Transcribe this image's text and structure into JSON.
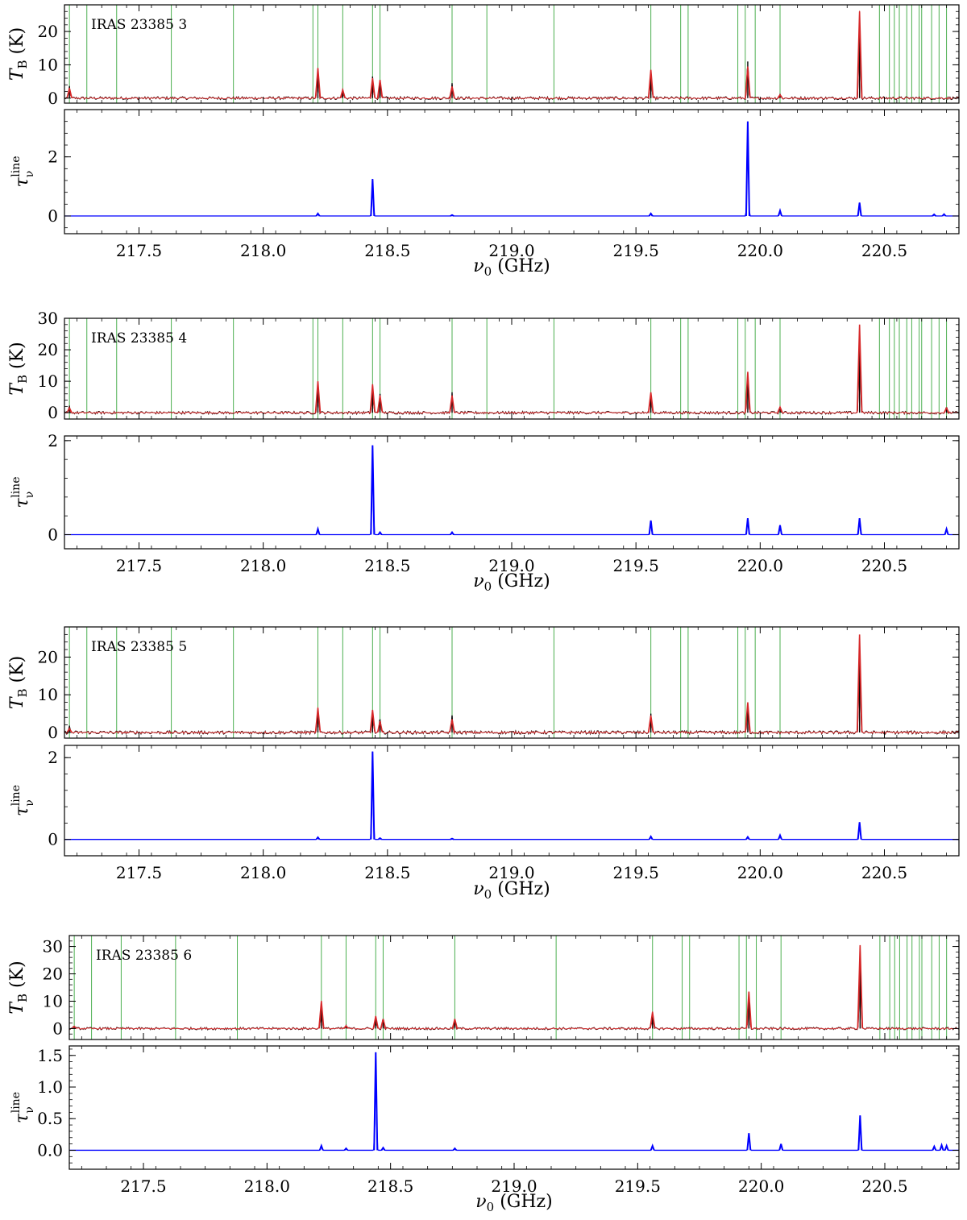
{
  "figure": {
    "labels": {
      "tb_ylabel": "T",
      "tb_ylabel_sub": "B",
      "tb_ylabel_unit": " (K)",
      "tau_ylabel": "τ",
      "tau_ylabel_sub": "ν",
      "tau_ylabel_sup": "line",
      "xlabel": "ν",
      "xlabel_sub": "0",
      "xlabel_unit": " (GHz)"
    }
  },
  "chart_data": [
    {
      "type": "line",
      "source": "IRAS 23385 3",
      "xlim": [
        217.2,
        220.8
      ],
      "x_ticks": [
        217.5,
        218.0,
        218.5,
        219.0,
        219.5,
        220.0,
        220.5
      ],
      "tb": {
        "ylim": [
          -1.5,
          28
        ],
        "y_ticks": [
          0,
          10,
          20
        ],
        "peaks_observed": [
          [
            217.22,
            3.5
          ],
          [
            218.22,
            8.5
          ],
          [
            218.32,
            2.5
          ],
          [
            218.44,
            6.5
          ],
          [
            218.47,
            5.0
          ],
          [
            218.76,
            4.5
          ],
          [
            219.56,
            8.0
          ],
          [
            219.95,
            11.0
          ],
          [
            220.08,
            1.2
          ],
          [
            220.4,
            25.0
          ]
        ],
        "peaks_model": [
          [
            217.22,
            3.0
          ],
          [
            218.22,
            9.0
          ],
          [
            218.32,
            2.5
          ],
          [
            218.44,
            6.0
          ],
          [
            218.47,
            5.5
          ],
          [
            218.76,
            3.5
          ],
          [
            219.56,
            8.5
          ],
          [
            219.95,
            9.5
          ],
          [
            220.08,
            1.0
          ],
          [
            220.4,
            26.0
          ]
        ],
        "line_markers": [
          217.22,
          217.29,
          217.41,
          217.63,
          217.88,
          218.2,
          218.22,
          218.32,
          218.44,
          218.47,
          218.76,
          218.9,
          219.17,
          219.56,
          219.68,
          219.71,
          219.91,
          219.94,
          219.98,
          220.08,
          220.48,
          220.52,
          220.54,
          220.56,
          220.59,
          220.61,
          220.64,
          220.65,
          220.69,
          220.72,
          220.75
        ]
      },
      "tau": {
        "ylim": [
          -0.6,
          3.6
        ],
        "y_ticks": [
          0,
          2
        ],
        "peaks": [
          [
            218.22,
            0.08
          ],
          [
            218.44,
            1.25
          ],
          [
            218.76,
            0.03
          ],
          [
            219.56,
            0.08
          ],
          [
            219.95,
            3.2
          ],
          [
            220.08,
            0.18
          ],
          [
            220.4,
            0.45
          ],
          [
            220.7,
            0.05
          ],
          [
            220.74,
            0.06
          ]
        ]
      }
    },
    {
      "type": "line",
      "source": "IRAS 23385 4",
      "xlim": [
        217.2,
        220.8
      ],
      "x_ticks": [
        217.5,
        218.0,
        218.5,
        219.0,
        219.5,
        220.0,
        220.5
      ],
      "tb": {
        "ylim": [
          -2,
          30
        ],
        "y_ticks": [
          0,
          10,
          20,
          30
        ],
        "peaks_observed": [
          [
            217.22,
            2.0
          ],
          [
            218.22,
            9.0
          ],
          [
            218.44,
            8.5
          ],
          [
            218.47,
            6.0
          ],
          [
            218.76,
            6.5
          ],
          [
            219.56,
            6.0
          ],
          [
            219.95,
            11.0
          ],
          [
            220.08,
            1.5
          ],
          [
            220.4,
            26.0
          ],
          [
            220.75,
            1.5
          ]
        ],
        "peaks_model": [
          [
            217.22,
            1.5
          ],
          [
            218.22,
            10.0
          ],
          [
            218.44,
            9.0
          ],
          [
            218.47,
            5.5
          ],
          [
            218.76,
            5.5
          ],
          [
            219.56,
            6.5
          ],
          [
            219.95,
            13.0
          ],
          [
            220.08,
            1.8
          ],
          [
            220.4,
            28.0
          ],
          [
            220.75,
            1.5
          ]
        ],
        "line_markers": [
          217.22,
          217.29,
          217.41,
          217.63,
          217.88,
          218.2,
          218.22,
          218.32,
          218.44,
          218.47,
          218.76,
          218.9,
          219.17,
          219.56,
          219.68,
          219.71,
          219.91,
          219.94,
          219.98,
          220.08,
          220.48,
          220.52,
          220.54,
          220.56,
          220.59,
          220.61,
          220.64,
          220.65,
          220.69,
          220.72,
          220.75
        ]
      },
      "tau": {
        "ylim": [
          -0.3,
          2.1
        ],
        "y_ticks": [
          0,
          2
        ],
        "peaks": [
          [
            218.22,
            0.12
          ],
          [
            218.44,
            1.9
          ],
          [
            218.47,
            0.05
          ],
          [
            218.76,
            0.05
          ],
          [
            219.56,
            0.3
          ],
          [
            219.95,
            0.35
          ],
          [
            220.08,
            0.2
          ],
          [
            220.4,
            0.35
          ],
          [
            220.75,
            0.12
          ]
        ]
      }
    },
    {
      "type": "line",
      "source": "IRAS 23385 5",
      "xlim": [
        217.2,
        220.8
      ],
      "x_ticks": [
        217.5,
        218.0,
        218.5,
        219.0,
        219.5,
        220.0,
        220.5
      ],
      "tb": {
        "ylim": [
          -1.5,
          28
        ],
        "y_ticks": [
          0,
          10,
          20
        ],
        "peaks_observed": [
          [
            217.22,
            1.5
          ],
          [
            218.22,
            6.0
          ],
          [
            218.44,
            5.5
          ],
          [
            218.47,
            3.5
          ],
          [
            218.76,
            4.5
          ],
          [
            219.56,
            5.0
          ],
          [
            219.95,
            7.5
          ],
          [
            220.4,
            25.0
          ]
        ],
        "peaks_model": [
          [
            217.22,
            1.0
          ],
          [
            218.22,
            6.5
          ],
          [
            218.44,
            6.0
          ],
          [
            218.47,
            3.0
          ],
          [
            218.76,
            3.5
          ],
          [
            219.56,
            4.5
          ],
          [
            219.95,
            8.0
          ],
          [
            220.4,
            26.0
          ]
        ],
        "line_markers": [
          217.22,
          217.29,
          217.41,
          217.63,
          217.88,
          218.22,
          218.32,
          218.44,
          218.47,
          218.76,
          219.17,
          219.56,
          219.68,
          219.71,
          219.91,
          219.94,
          219.98,
          220.08
        ]
      },
      "tau": {
        "ylim": [
          -0.4,
          2.3
        ],
        "y_ticks": [
          0,
          2
        ],
        "peaks": [
          [
            218.22,
            0.05
          ],
          [
            218.44,
            2.15
          ],
          [
            218.47,
            0.03
          ],
          [
            218.76,
            0.02
          ],
          [
            219.56,
            0.07
          ],
          [
            219.95,
            0.06
          ],
          [
            220.08,
            0.1
          ],
          [
            220.4,
            0.42
          ]
        ]
      }
    },
    {
      "type": "line",
      "source": "IRAS 23385 6",
      "xlim": [
        217.2,
        220.8
      ],
      "x_ticks": [
        217.5,
        218.0,
        218.5,
        219.0,
        219.5,
        220.0,
        220.5
      ],
      "tb": {
        "ylim": [
          -4,
          34
        ],
        "y_ticks": [
          0,
          10,
          20,
          30
        ],
        "peaks_observed": [
          [
            217.22,
            1.0
          ],
          [
            218.22,
            9.5
          ],
          [
            218.32,
            1.0
          ],
          [
            218.44,
            4.0
          ],
          [
            218.47,
            3.5
          ],
          [
            218.76,
            3.0
          ],
          [
            219.56,
            5.0
          ],
          [
            219.95,
            13.0
          ],
          [
            220.4,
            28.0
          ]
        ],
        "peaks_model": [
          [
            217.22,
            0.8
          ],
          [
            218.22,
            10.0
          ],
          [
            218.32,
            1.0
          ],
          [
            218.44,
            4.5
          ],
          [
            218.47,
            3.5
          ],
          [
            218.76,
            3.5
          ],
          [
            219.56,
            6.0
          ],
          [
            219.95,
            13.5
          ],
          [
            220.4,
            30.5
          ]
        ],
        "line_markers": [
          217.22,
          217.29,
          217.41,
          217.63,
          217.88,
          218.22,
          218.32,
          218.44,
          218.47,
          218.76,
          219.17,
          219.56,
          219.68,
          219.71,
          219.91,
          219.94,
          219.98,
          220.08,
          220.48,
          220.52,
          220.54,
          220.56,
          220.59,
          220.61,
          220.64,
          220.65,
          220.69,
          220.72,
          220.75
        ]
      },
      "tau": {
        "ylim": [
          -0.3,
          1.65
        ],
        "y_ticks": [
          0.0,
          0.5,
          1.0,
          1.5
        ],
        "peaks": [
          [
            218.22,
            0.07
          ],
          [
            218.32,
            0.03
          ],
          [
            218.44,
            1.55
          ],
          [
            218.47,
            0.04
          ],
          [
            218.76,
            0.03
          ],
          [
            219.56,
            0.07
          ],
          [
            219.95,
            0.27
          ],
          [
            220.08,
            0.1
          ],
          [
            220.4,
            0.55
          ],
          [
            220.7,
            0.06
          ],
          [
            220.73,
            0.08
          ],
          [
            220.75,
            0.07
          ]
        ]
      }
    }
  ]
}
